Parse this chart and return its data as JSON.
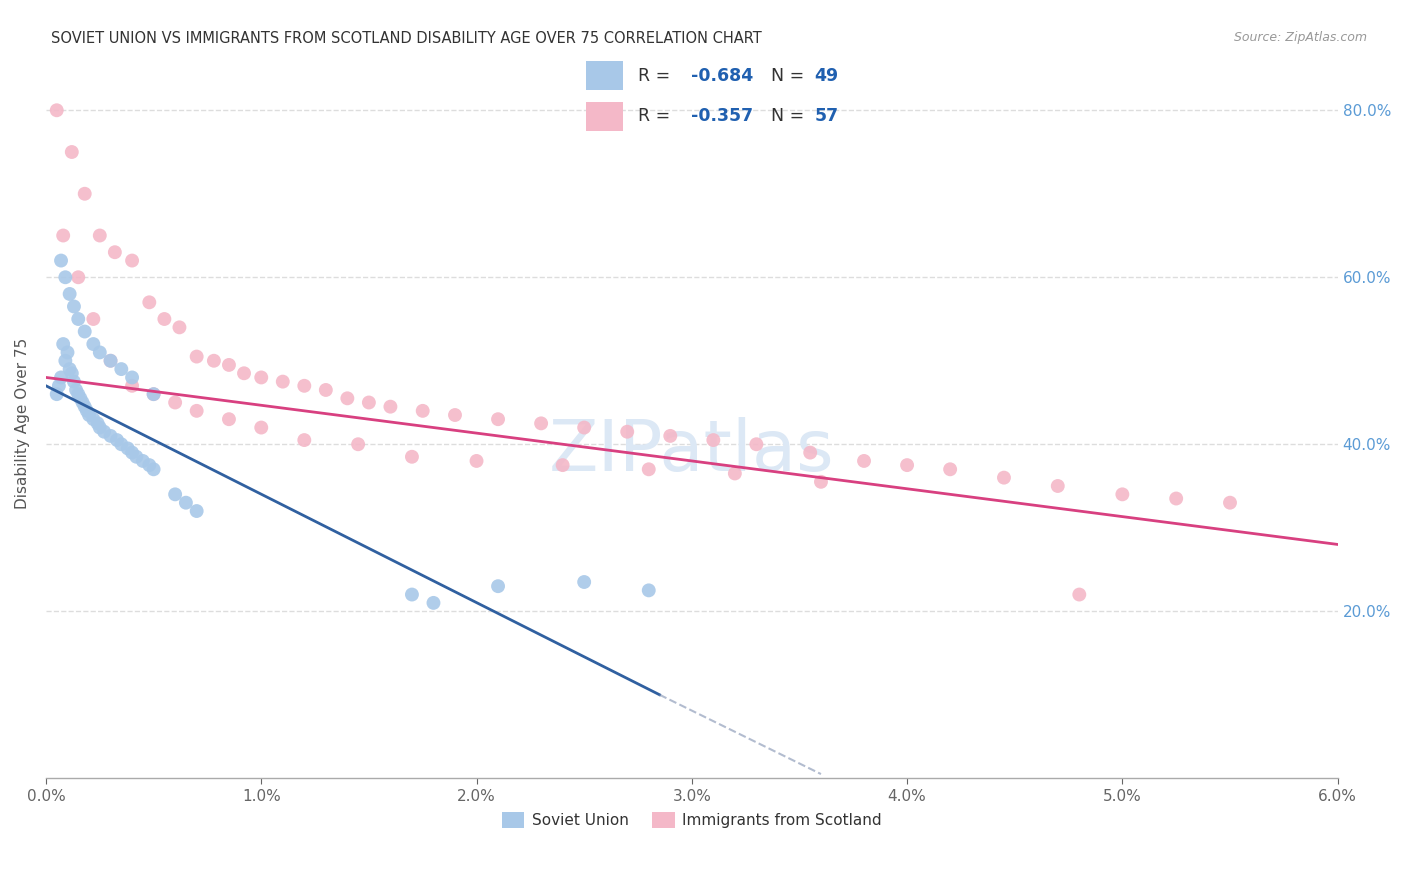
{
  "title": "SOVIET UNION VS IMMIGRANTS FROM SCOTLAND DISABILITY AGE OVER 75 CORRELATION CHART",
  "source": "Source: ZipAtlas.com",
  "ylabel": "Disability Age Over 75",
  "blue_color": "#a8c8e8",
  "pink_color": "#f4b8c8",
  "blue_line_color": "#3060a0",
  "pink_line_color": "#d84080",
  "blue_dash_color": "#8090b0",
  "watermark_text": "ZIPatlas",
  "watermark_color": "#dce8f5",
  "xlim": [
    0.0,
    6.0
  ],
  "ylim": [
    0.0,
    85.0
  ],
  "xtick_vals": [
    0,
    1,
    2,
    3,
    4,
    5,
    6
  ],
  "xtick_labels": [
    "0.0%",
    "1.0%",
    "2.0%",
    "3.0%",
    "4.0%",
    "5.0%",
    "6.0%"
  ],
  "ytick_vals": [
    20,
    40,
    60,
    80
  ],
  "ytick_labels": [
    "20.0%",
    "40.0%",
    "60.0%",
    "80.0%"
  ],
  "legend_r1": "R = -0.684",
  "legend_n1": "N = 49",
  "legend_r2": "R = -0.357",
  "legend_n2": "N = 57",
  "legend_label1": "Soviet Union",
  "legend_label2": "Immigrants from Scotland",
  "soviet_x": [
    0.05,
    0.06,
    0.07,
    0.08,
    0.09,
    0.1,
    0.11,
    0.12,
    0.13,
    0.14,
    0.15,
    0.16,
    0.17,
    0.18,
    0.19,
    0.2,
    0.22,
    0.24,
    0.25,
    0.27,
    0.3,
    0.33,
    0.35,
    0.38,
    0.4,
    0.42,
    0.45,
    0.48,
    0.5,
    0.07,
    0.09,
    0.11,
    0.13,
    0.15,
    0.18,
    0.22,
    0.25,
    0.3,
    0.35,
    0.4,
    0.5,
    0.6,
    0.65,
    0.7,
    1.7,
    1.8,
    2.1,
    2.5,
    2.8
  ],
  "soviet_y": [
    46.0,
    47.0,
    48.0,
    52.0,
    50.0,
    51.0,
    49.0,
    48.5,
    47.5,
    46.5,
    46.0,
    45.5,
    45.0,
    44.5,
    44.0,
    43.5,
    43.0,
    42.5,
    42.0,
    41.5,
    41.0,
    40.5,
    40.0,
    39.5,
    39.0,
    38.5,
    38.0,
    37.5,
    37.0,
    62.0,
    60.0,
    58.0,
    56.5,
    55.0,
    53.5,
    52.0,
    51.0,
    50.0,
    49.0,
    48.0,
    46.0,
    34.0,
    33.0,
    32.0,
    22.0,
    21.0,
    23.0,
    23.5,
    22.5
  ],
  "scotland_x": [
    0.05,
    0.12,
    0.18,
    0.25,
    0.32,
    0.4,
    0.48,
    0.55,
    0.62,
    0.7,
    0.78,
    0.85,
    0.92,
    1.0,
    1.1,
    1.2,
    1.3,
    1.4,
    1.5,
    1.6,
    1.75,
    1.9,
    2.1,
    2.3,
    2.5,
    2.7,
    2.9,
    3.1,
    3.3,
    3.55,
    3.8,
    4.0,
    4.2,
    4.45,
    4.7,
    5.0,
    5.25,
    5.5,
    0.08,
    0.15,
    0.22,
    0.3,
    0.4,
    0.5,
    0.6,
    0.7,
    0.85,
    1.0,
    1.2,
    1.45,
    1.7,
    2.0,
    2.4,
    2.8,
    3.2,
    3.6,
    4.8
  ],
  "scotland_y": [
    80.0,
    75.0,
    70.0,
    65.0,
    63.0,
    62.0,
    57.0,
    55.0,
    54.0,
    50.5,
    50.0,
    49.5,
    48.5,
    48.0,
    47.5,
    47.0,
    46.5,
    45.5,
    45.0,
    44.5,
    44.0,
    43.5,
    43.0,
    42.5,
    42.0,
    41.5,
    41.0,
    40.5,
    40.0,
    39.0,
    38.0,
    37.5,
    37.0,
    36.0,
    35.0,
    34.0,
    33.5,
    33.0,
    65.0,
    60.0,
    55.0,
    50.0,
    47.0,
    46.0,
    45.0,
    44.0,
    43.0,
    42.0,
    40.5,
    40.0,
    38.5,
    38.0,
    37.5,
    37.0,
    36.5,
    35.5,
    22.0
  ],
  "blue_regr_x0": 0.0,
  "blue_regr_y0": 47.0,
  "blue_regr_x1_solid": 2.85,
  "blue_regr_y1_solid": 10.0,
  "blue_regr_x1_dash": 3.6,
  "blue_regr_y1_dash": 0.5,
  "pink_regr_x0": 0.0,
  "pink_regr_y0": 48.0,
  "pink_regr_x1": 6.0,
  "pink_regr_y1": 28.0
}
